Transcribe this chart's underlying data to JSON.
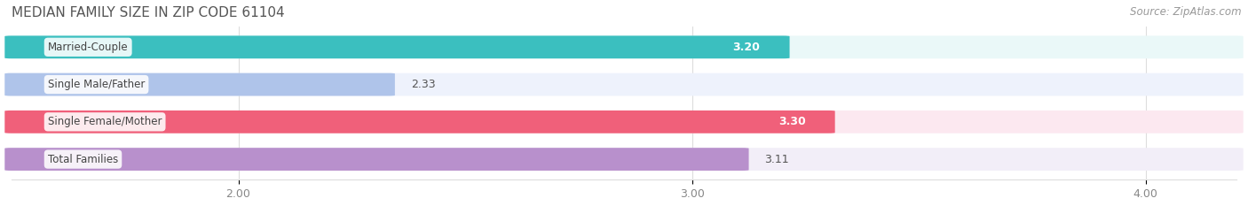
{
  "title": "MEDIAN FAMILY SIZE IN ZIP CODE 61104",
  "source": "Source: ZipAtlas.com",
  "categories": [
    "Married-Couple",
    "Single Male/Father",
    "Single Female/Mother",
    "Total Families"
  ],
  "values": [
    3.2,
    2.33,
    3.3,
    3.11
  ],
  "bar_colors": [
    "#3bbfbf",
    "#afc4ea",
    "#f0607a",
    "#b890cc"
  ],
  "bar_bg_colors": [
    "#eaf8f8",
    "#eef2fc",
    "#fce8f0",
    "#f2eef8"
  ],
  "value_label_inside": [
    true,
    false,
    true,
    false
  ],
  "xlim_data_min": 0,
  "xlim_data_max": 4.0,
  "xlim_display_min": 1.5,
  "xlim_display_max": 4.2,
  "xticks": [
    2.0,
    3.0,
    4.0
  ],
  "xtick_labels": [
    "2.00",
    "3.00",
    "4.00"
  ],
  "title_fontsize": 11,
  "source_fontsize": 8.5,
  "bar_height": 0.58
}
